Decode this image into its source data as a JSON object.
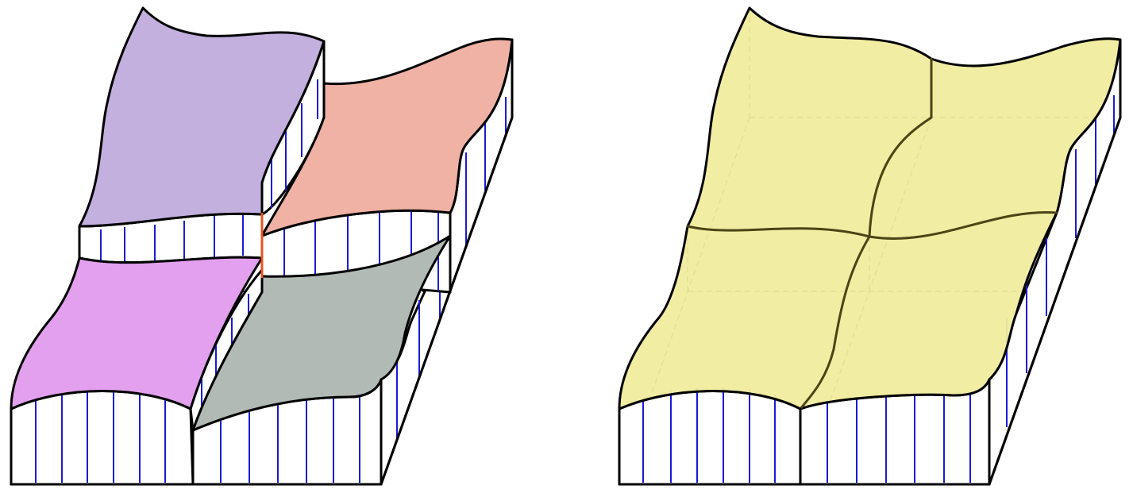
{
  "figure": {
    "left_panel": {
      "description_id": "surface-patches-separated",
      "patches": [
        {
          "id": "top-left",
          "color": "#c3b0df"
        },
        {
          "id": "top-right",
          "color": "#f0b2a5"
        },
        {
          "id": "bottom-left",
          "color": "#e3a0ef"
        },
        {
          "id": "bottom-right",
          "color": "#b2bab5"
        }
      ],
      "discontinuity_color": "#e8541f"
    },
    "right_panel": {
      "description_id": "surface-patches-joined",
      "surface_color": "#f0ec9d",
      "seam_color": "#4a4416"
    },
    "hatch_color": "#1a1adb",
    "edge_color": "#000000"
  }
}
